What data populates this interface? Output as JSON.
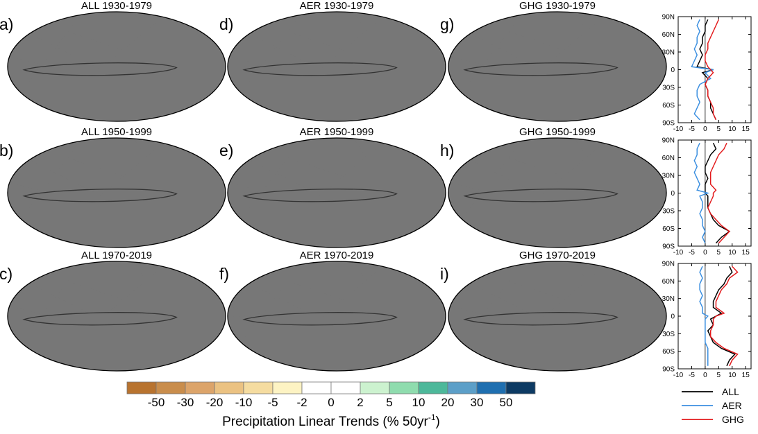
{
  "maps": [
    {
      "letter": "a)",
      "title": "ALL 1930-1979"
    },
    {
      "letter": "b)",
      "title": "ALL 1950-1999"
    },
    {
      "letter": "c)",
      "title": "ALL 1970-2019"
    },
    {
      "letter": "d)",
      "title": "AER 1930-1979"
    },
    {
      "letter": "e)",
      "title": "AER 1950-1999"
    },
    {
      "letter": "f)",
      "title": "AER 1970-2019"
    },
    {
      "letter": "g)",
      "title": "GHG 1930-1979"
    },
    {
      "letter": "h)",
      "title": "GHG 1950-1999"
    },
    {
      "letter": "i)",
      "title": "GHG 1970-2019"
    }
  ],
  "colorbar": {
    "labels": [
      "-50",
      "-30",
      "-20",
      "-10",
      "-5",
      "-2",
      "0",
      "2",
      "5",
      "10",
      "20",
      "30",
      "50"
    ],
    "colors": [
      "#b8732f",
      "#c98d4c",
      "#dca46a",
      "#ebc282",
      "#f5dca0",
      "#fdf3c3",
      "#ffffff",
      "#ffffff",
      "#ccf2cf",
      "#8fdcae",
      "#4db89a",
      "#5c9fc8",
      "#1f6fb0",
      "#0d3a63"
    ],
    "title_main": "Precipitation Linear Trends (% 50yr",
    "title_sup": "-1",
    "title_end": ")"
  },
  "legend": [
    {
      "name": "ALL",
      "color": "#000000"
    },
    {
      "name": "AER",
      "color": "#3b8fe0"
    },
    {
      "name": "GHG",
      "color": "#e31a1c"
    }
  ],
  "chart_data": [
    {
      "type": "line",
      "title": "",
      "ylabels": [
        "90N",
        "60N",
        "30N",
        "0",
        "30S",
        "60S",
        "90S"
      ],
      "xticks": [
        "-10",
        "-5",
        "0",
        "5",
        "10",
        "15"
      ],
      "xlim": [
        -10,
        17
      ],
      "ylim": [
        -90,
        90
      ],
      "y": [
        85,
        75,
        65,
        55,
        45,
        35,
        25,
        15,
        5,
        0,
        -5,
        -15,
        -25,
        -35,
        -45,
        -55,
        -65,
        -75,
        -85
      ],
      "series": [
        {
          "name": "ALL",
          "values": [
            1,
            0,
            0,
            -1,
            -1,
            -2,
            -1,
            -2,
            -3,
            3,
            -1,
            1,
            0,
            1,
            1,
            2,
            2,
            3,
            4
          ]
        },
        {
          "name": "AER",
          "values": [
            -2,
            -3,
            -2,
            -3,
            -3,
            -4,
            -3,
            -4,
            -5,
            3,
            0,
            2,
            -2,
            -3,
            -3,
            -2,
            -3,
            -4,
            -2
          ]
        },
        {
          "name": "GHG",
          "values": [
            5,
            4,
            3,
            2,
            1,
            1,
            0,
            0,
            1,
            2,
            3,
            1,
            0,
            1,
            1,
            2,
            3,
            3,
            4
          ]
        }
      ]
    },
    {
      "type": "line",
      "title": "",
      "ylabels": [
        "90N",
        "60N",
        "30N",
        "0",
        "30S",
        "60S",
        "90S"
      ],
      "xticks": [
        "-10",
        "-5",
        "0",
        "5",
        "10",
        "15"
      ],
      "xlim": [
        -10,
        17
      ],
      "ylim": [
        -90,
        90
      ],
      "y": [
        85,
        75,
        65,
        55,
        45,
        35,
        25,
        15,
        5,
        0,
        -5,
        -15,
        -25,
        -35,
        -45,
        -55,
        -65,
        -75,
        -85
      ],
      "series": [
        {
          "name": "ALL",
          "values": [
            3,
            4,
            2,
            1,
            0,
            0,
            1,
            0,
            0,
            0,
            1,
            1,
            1,
            2,
            3,
            5,
            9,
            6,
            4
          ]
        },
        {
          "name": "AER",
          "values": [
            -2,
            -3,
            -3,
            -4,
            -3,
            -4,
            -3,
            -2,
            -3,
            1,
            -2,
            -1,
            -1,
            -2,
            -1,
            -1,
            0,
            -1,
            0
          ]
        },
        {
          "name": "GHG",
          "values": [
            8,
            7,
            5,
            4,
            3,
            2,
            2,
            2,
            4,
            3,
            3,
            2,
            1,
            2,
            4,
            6,
            9,
            7,
            5
          ]
        }
      ]
    },
    {
      "type": "line",
      "title": "",
      "ylabels": [
        "90N",
        "60N",
        "30N",
        "0",
        "30S",
        "60S",
        "90S"
      ],
      "xticks": [
        "-10",
        "-5",
        "0",
        "5",
        "10",
        "15"
      ],
      "xlim": [
        -10,
        17
      ],
      "ylim": [
        -90,
        90
      ],
      "y": [
        85,
        75,
        65,
        55,
        45,
        35,
        25,
        15,
        5,
        0,
        -5,
        -15,
        -25,
        -35,
        -45,
        -55,
        -65,
        -75,
        -85
      ],
      "series": [
        {
          "name": "ALL",
          "values": [
            9,
            10,
            8,
            7,
            5,
            4,
            3,
            3,
            6,
            4,
            2,
            3,
            1,
            2,
            3,
            6,
            11,
            9,
            8
          ]
        },
        {
          "name": "AER",
          "values": [
            -1,
            -2,
            -1,
            -2,
            -2,
            -1,
            -2,
            -1,
            -1,
            1,
            0,
            0,
            0,
            0,
            0,
            1,
            1,
            1,
            1
          ]
        },
        {
          "name": "GHG",
          "values": [
            10,
            12,
            9,
            8,
            6,
            5,
            4,
            4,
            7,
            4,
            3,
            3,
            2,
            2,
            4,
            7,
            12,
            10,
            9
          ]
        }
      ]
    }
  ]
}
